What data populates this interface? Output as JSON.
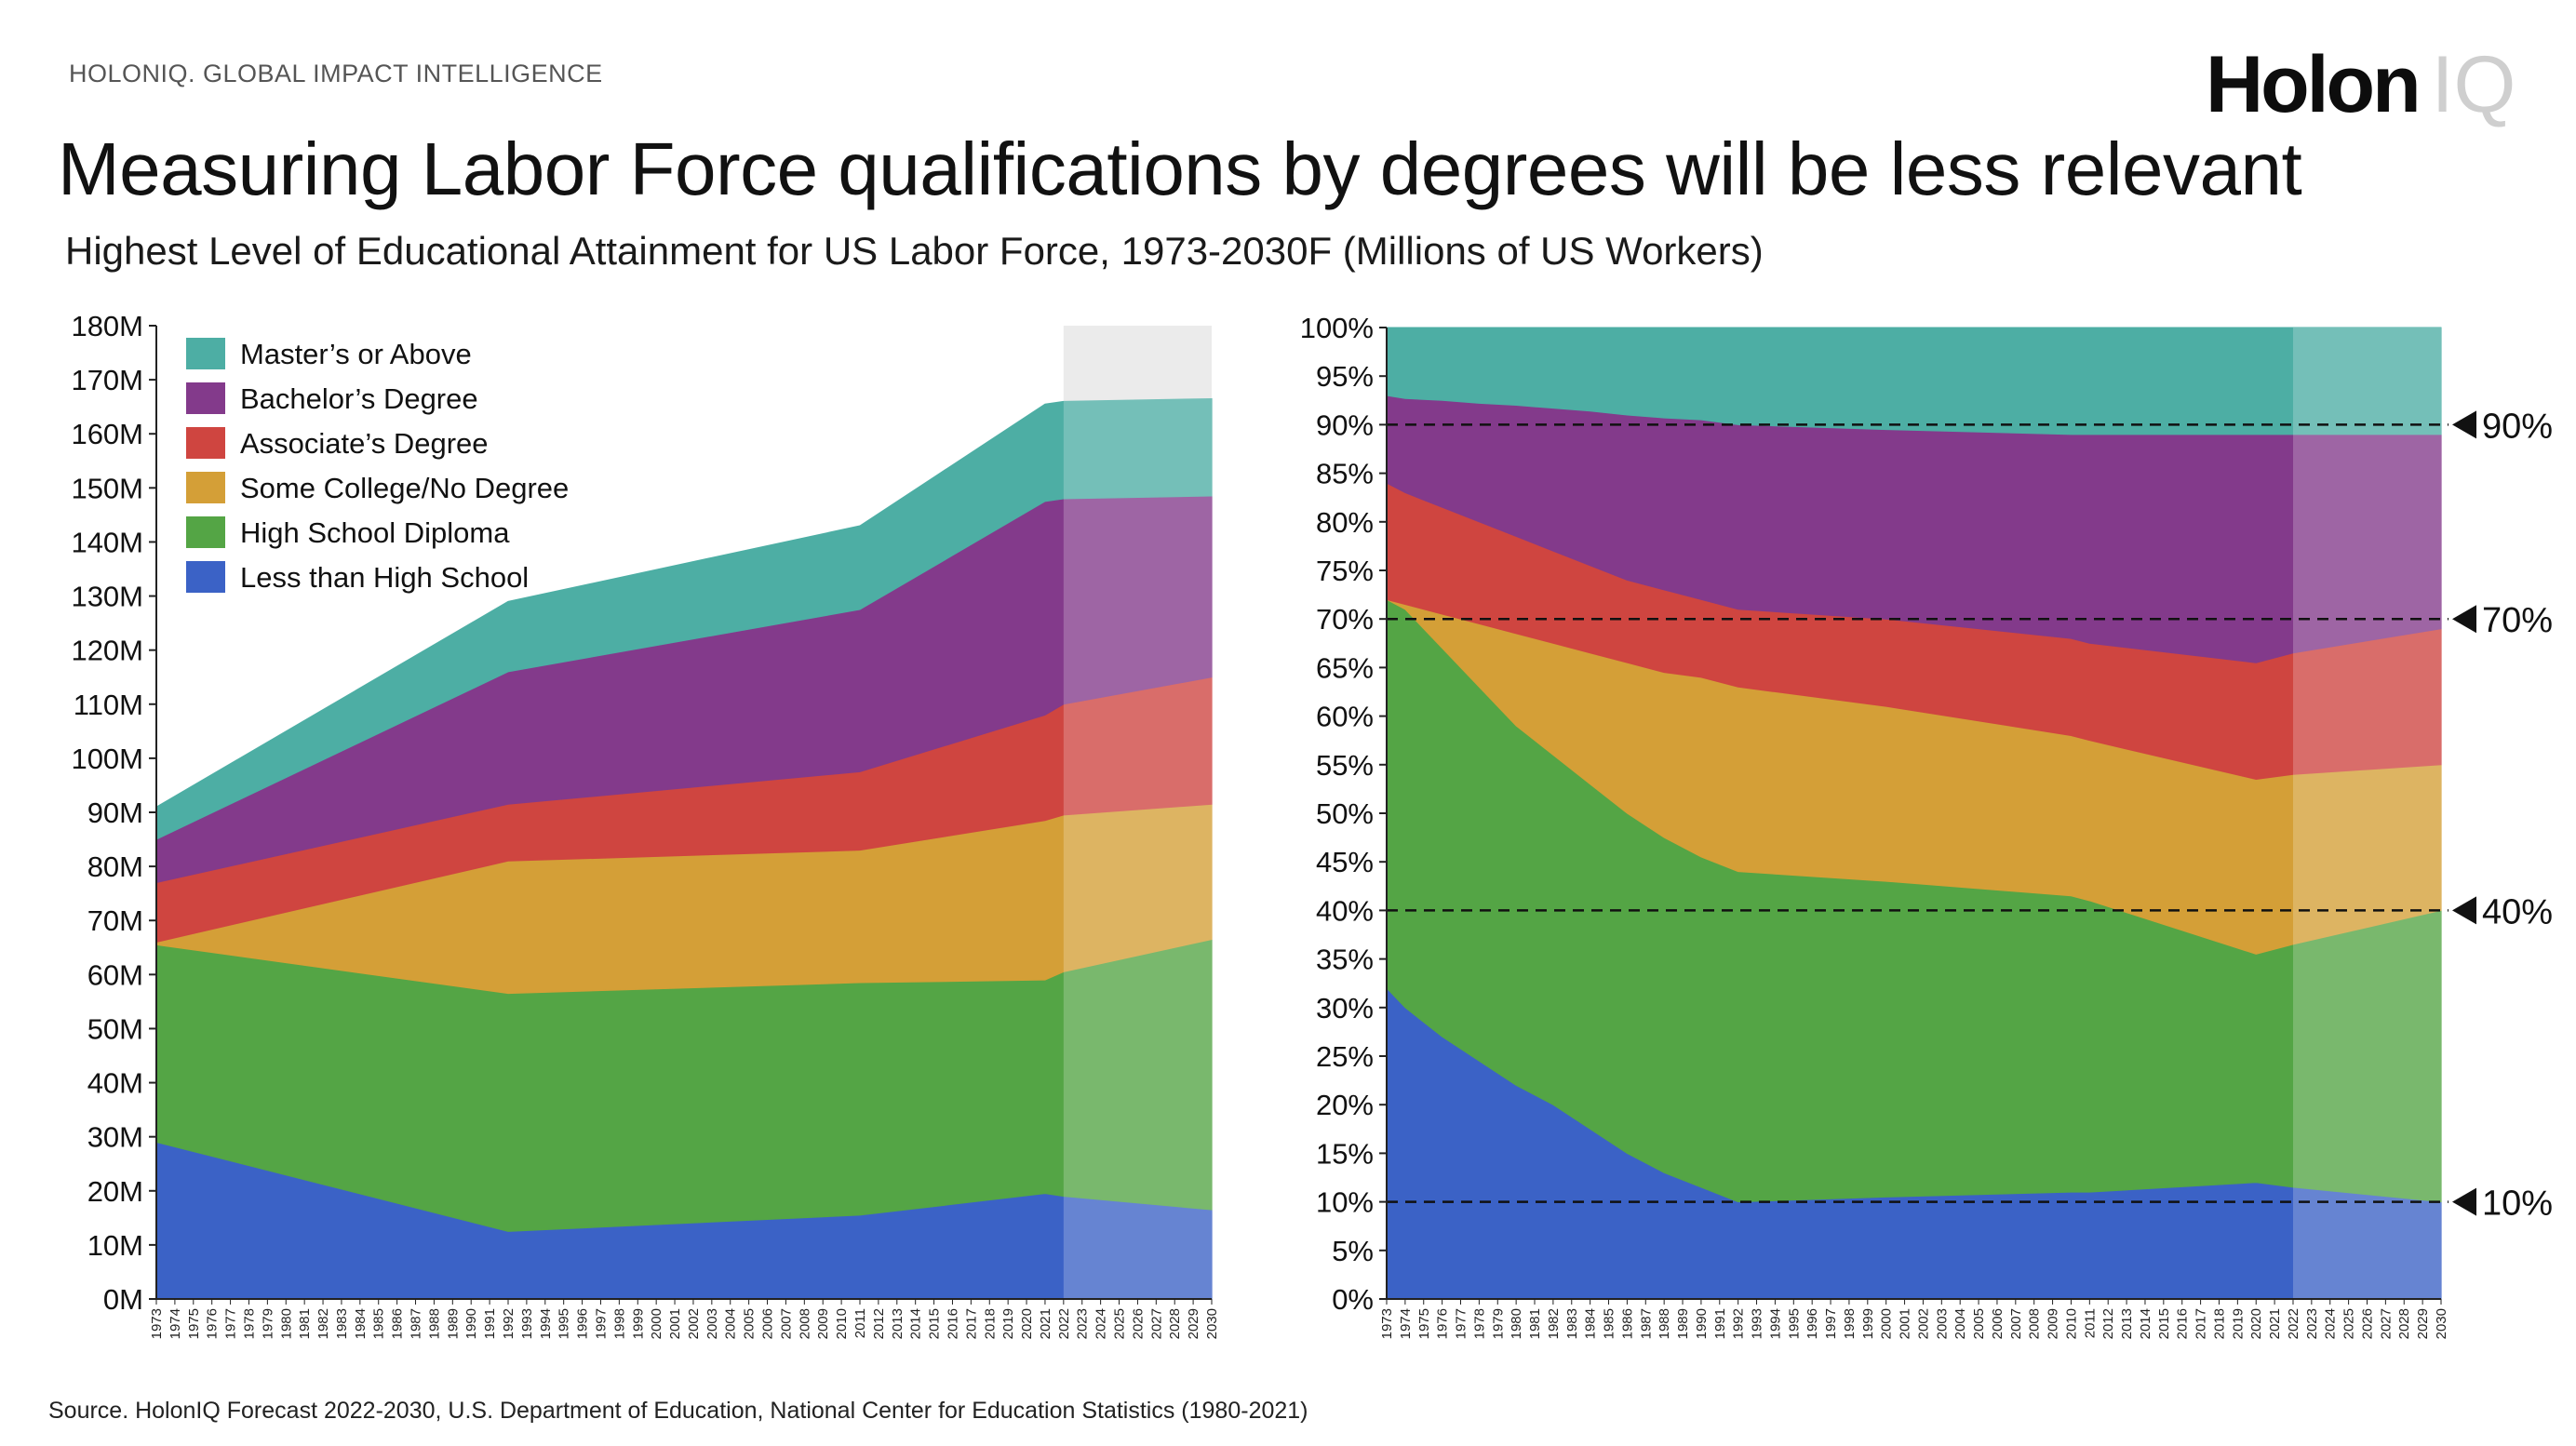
{
  "header": {
    "kicker": "HOLONIQ. GLOBAL IMPACT INTELLIGENCE",
    "brand_main": "Holon",
    "brand_suffix": "IQ",
    "title": "Measuring Labor Force qualifications by degrees will be less relevant",
    "subtitle": "Highest Level of Educational Attainment for US Labor Force, 1973-2030F (Millions of US Workers)"
  },
  "footer": {
    "source": "Source. HolonIQ Forecast 2022-2030, U.S. Department of Education, National Center for Education Statistics (1980-2021)"
  },
  "colors": {
    "masters": "#4daea4",
    "bachelors": "#833a8b",
    "associates": "#cf4540",
    "some_college": "#d49f37",
    "high_school": "#54a545",
    "less_than_hs": "#3b62c6",
    "forecast_shade": "#e6e6e6"
  },
  "chart_data": [
    {
      "type": "area",
      "stacked": true,
      "title": "",
      "xlabel": "",
      "ylabel": "",
      "unit": "M",
      "ylim": [
        0,
        180
      ],
      "yticks": [
        0,
        10,
        20,
        30,
        40,
        50,
        60,
        70,
        80,
        90,
        100,
        110,
        120,
        130,
        140,
        150,
        160,
        170,
        180
      ],
      "ytick_labels": [
        "0M",
        "10M",
        "20M",
        "30M",
        "40M",
        "50M",
        "60M",
        "70M",
        "80M",
        "90M",
        "100M",
        "110M",
        "120M",
        "130M",
        "140M",
        "150M",
        "160M",
        "170M",
        "180M"
      ],
      "x_range": [
        1973,
        2030
      ],
      "forecast_start": 2022,
      "xtick_labels": [
        "1973",
        "1974",
        "1975",
        "1976",
        "1977",
        "1978",
        "1979",
        "1980",
        "1981",
        "1982",
        "1983",
        "1984",
        "1985",
        "1986",
        "1987",
        "1988",
        "1989",
        "1990",
        "1991",
        "1992",
        "1993",
        "1994",
        "1995",
        "1996",
        "1997",
        "1998",
        "1999",
        "2000",
        "2001",
        "2002",
        "2003",
        "2004",
        "2005",
        "2006",
        "2007",
        "2008",
        "2009",
        "2010",
        "2011",
        "2012",
        "2013",
        "2014",
        "2015",
        "2016",
        "2017",
        "2018",
        "2019",
        "2020",
        "2021",
        "2022",
        "2023",
        "2024",
        "2025",
        "2026",
        "2027",
        "2028",
        "2029",
        "2030"
      ],
      "x": [
        1973,
        1992,
        2011,
        2021,
        2022,
        2030
      ],
      "legend_position": "top-left",
      "series": [
        {
          "key": "less_than_hs",
          "name": "Less than High School",
          "values": [
            29,
            12.5,
            15.5,
            19.5,
            19,
            16.5
          ]
        },
        {
          "key": "high_school",
          "name": "High School Diploma",
          "values": [
            36.5,
            44,
            43,
            39.5,
            41.5,
            50
          ]
        },
        {
          "key": "some_college",
          "name": "Some College/No Degree",
          "values": [
            0.5,
            24.5,
            24.5,
            29.5,
            29,
            25
          ]
        },
        {
          "key": "associates",
          "name": "Associate's Degree",
          "values": [
            11,
            10.5,
            14.5,
            19.5,
            20.5,
            23.5
          ]
        },
        {
          "key": "bachelors",
          "name": "Bachelor's Degree",
          "values": [
            8,
            24.5,
            30,
            39.5,
            38,
            33.5
          ]
        },
        {
          "key": "masters",
          "name": "Master's or Above",
          "values": [
            6,
            13,
            15.5,
            18,
            18,
            18
          ]
        }
      ]
    },
    {
      "type": "area",
      "stacked": true,
      "percent": true,
      "title": "",
      "xlabel": "",
      "ylabel": "",
      "unit": "%",
      "ylim": [
        0,
        100
      ],
      "yticks": [
        0,
        5,
        10,
        15,
        20,
        25,
        30,
        35,
        40,
        45,
        50,
        55,
        60,
        65,
        70,
        75,
        80,
        85,
        90,
        95,
        100
      ],
      "ytick_labels": [
        "0%",
        "5%",
        "10%",
        "15%",
        "20%",
        "25%",
        "30%",
        "35%",
        "40%",
        "45%",
        "50%",
        "55%",
        "60%",
        "65%",
        "70%",
        "75%",
        "80%",
        "85%",
        "90%",
        "95%",
        "100%"
      ],
      "x_range": [
        1973,
        2030
      ],
      "forecast_start": 2022,
      "xtick_labels": [
        "1973",
        "1974",
        "1975",
        "1976",
        "1977",
        "1978",
        "1979",
        "1980",
        "1981",
        "1982",
        "1983",
        "1984",
        "1985",
        "1986",
        "1987",
        "1988",
        "1989",
        "1990",
        "1991",
        "1992",
        "1993",
        "1994",
        "1995",
        "1996",
        "1997",
        "1998",
        "1999",
        "2000",
        "2001",
        "2002",
        "2003",
        "2004",
        "2005",
        "2006",
        "2007",
        "2008",
        "2009",
        "2010",
        "2011",
        "2012",
        "2013",
        "2014",
        "2015",
        "2016",
        "2017",
        "2018",
        "2019",
        "2020",
        "2021",
        "2022",
        "2023",
        "2024",
        "2025",
        "2026",
        "2027",
        "2028",
        "2029",
        "2030"
      ],
      "boundaries": {
        "x": [
          1973,
          1974,
          1976,
          1978,
          1980,
          1982,
          1984,
          1986,
          1988,
          1990,
          1992,
          2000,
          2010,
          2011,
          2020,
          2022,
          2030
        ],
        "less_than_hs": [
          32,
          30,
          27,
          24.5,
          22,
          20,
          17.5,
          15,
          13,
          11.5,
          10,
          10.5,
          11,
          11,
          12,
          11.5,
          10
        ],
        "high_school": [
          72,
          71,
          67,
          63,
          59,
          56,
          53,
          50,
          47.5,
          45.5,
          44,
          43,
          41.5,
          41,
          35.5,
          36.5,
          40
        ],
        "some_college": [
          72,
          71.5,
          70.5,
          69.5,
          68.5,
          67.5,
          66.5,
          65.5,
          64.5,
          64,
          63,
          61,
          58,
          57.5,
          53.5,
          54,
          55
        ],
        "associates": [
          84,
          83,
          81.5,
          80,
          78.5,
          77,
          75.5,
          74,
          73,
          72,
          71,
          70,
          68,
          67.5,
          65.5,
          66.5,
          69
        ],
        "bachelors": [
          93,
          92.7,
          92.5,
          92.2,
          92,
          91.7,
          91.4,
          91,
          90.7,
          90.5,
          90,
          89.5,
          89,
          89,
          89,
          89,
          89
        ],
        "masters": [
          100,
          100,
          100,
          100,
          100,
          100,
          100,
          100,
          100,
          100,
          100,
          100,
          100,
          100,
          100,
          100,
          100
        ]
      },
      "reference_lines": [
        {
          "value": 90,
          "label": "90%"
        },
        {
          "value": 70,
          "label": "70%"
        },
        {
          "value": 40,
          "label": "40%"
        },
        {
          "value": 10,
          "label": "10%"
        }
      ]
    }
  ]
}
